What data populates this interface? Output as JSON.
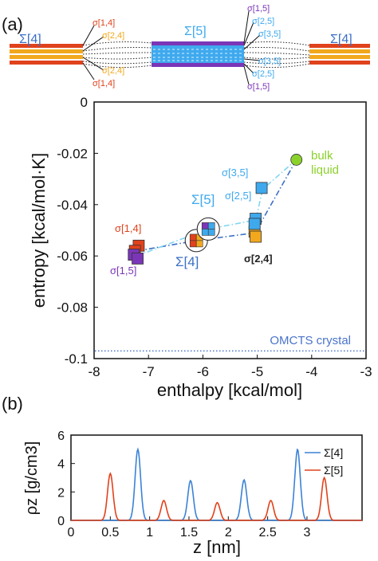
{
  "figure": {
    "panel_a_label": "(a)",
    "panel_b_label": "(b)",
    "schematic": {
      "sigma4_left": "Σ[4]",
      "sigma5": "Σ[5]",
      "sigma4_right": "Σ[4]",
      "left_labels": [
        "σ[1,4]",
        "σ[2,4]",
        "σ[2,4]",
        "σ[1,4]"
      ],
      "right_labels": [
        "σ[1,5]",
        "σ[2,5]",
        "σ[3,5]",
        "σ[3,5]",
        "σ[2,5]",
        "σ[1,5]"
      ],
      "colors": {
        "red": "#e0421c",
        "orange": "#f2a81d",
        "blue": "#3fa9ee",
        "purple": "#7b36b8"
      }
    }
  },
  "chart_data": [
    {
      "type": "scatter",
      "panel": "(a)",
      "xlabel": "enthalpy [kcal/mol]",
      "ylabel": "entropy [kcal/mol·K]",
      "xlim": [
        -8,
        -3
      ],
      "ylim": [
        -0.1,
        0
      ],
      "xticks": [
        "-8",
        "-7",
        "-6",
        "-5",
        "-4",
        "-3"
      ],
      "yticks": [
        "0",
        "-0.02",
        "-0.04",
        "-0.06",
        "-0.08",
        "-0.1"
      ],
      "reference_line": {
        "label": "OMCTS crystal",
        "y": -0.097,
        "color": "#4a74c9"
      },
      "bulk_liquid": {
        "label": "bulk liquid",
        "x": -4.28,
        "y": -0.0225,
        "color": "#8bd12b"
      },
      "points": [
        {
          "label": "σ[1,4]",
          "x": -7.18,
          "y": -0.056,
          "color": "#e0421c"
        },
        {
          "label": "σ[1,4]",
          "x": -7.25,
          "y": -0.058,
          "color": "#e0421c"
        },
        {
          "label": "σ[1,5]",
          "x": -7.27,
          "y": -0.0595,
          "color": "#7b36b8"
        },
        {
          "label": "σ[1,5]",
          "x": -7.2,
          "y": -0.061,
          "color": "#7b36b8"
        },
        {
          "label": "σ[2,4]",
          "x": -5.05,
          "y": -0.0505,
          "color": "#f2a81d"
        },
        {
          "label": "σ[2,4]",
          "x": -5.03,
          "y": -0.0525,
          "color": "#f2a81d"
        },
        {
          "label": "σ[2,5]",
          "x": -5.03,
          "y": -0.0455,
          "color": "#3fa9ee"
        },
        {
          "label": "σ[2,5]",
          "x": -5.05,
          "y": -0.0475,
          "color": "#3fa9ee"
        },
        {
          "label": "σ[3,5]",
          "x": -4.92,
          "y": -0.0335,
          "color": "#3fa9ee"
        }
      ],
      "point_labels": [
        {
          "text": "σ[1,4]",
          "color": "#e0421c"
        },
        {
          "text": "σ[1,5]",
          "color": "#7b36b8"
        },
        {
          "text": "σ[2,4]",
          "color": "#222222"
        },
        {
          "text": "σ[2,5]",
          "color": "#3fa9ee"
        },
        {
          "text": "σ[3,5]",
          "color": "#3fa9ee"
        }
      ],
      "averages": [
        {
          "label": "Σ[4]",
          "x": -6.12,
          "y": -0.054,
          "color": "#3b6fc6",
          "squares": [
            "#e0421c",
            "#f2a81d",
            "#e0421c",
            "#f2a81d"
          ]
        },
        {
          "label": "Σ[5]",
          "x": -5.9,
          "y": -0.0495,
          "color": "#3fa9ee",
          "squares": [
            "#7b36b8",
            "#3fa9ee",
            "#3fa9ee",
            "#3fa9ee"
          ]
        }
      ],
      "paths": [
        {
          "name": "Σ[4]",
          "style": "dash-dot",
          "color": "#3b6fc6",
          "points": [
            [
              -7.2,
              -0.058
            ],
            [
              -6.12,
              -0.054
            ],
            [
              -5.04,
              -0.051
            ],
            [
              -4.28,
              -0.0225
            ]
          ]
        },
        {
          "name": "Σ[5]",
          "style": "dash-dot",
          "color": "#7fd6f2",
          "points": [
            [
              -7.22,
              -0.06
            ],
            [
              -5.9,
              -0.0495
            ],
            [
              -5.03,
              -0.046
            ],
            [
              -4.9,
              -0.034
            ],
            [
              -4.28,
              -0.0225
            ]
          ]
        }
      ]
    },
    {
      "type": "line",
      "panel": "(b)",
      "xlabel": "z [nm]",
      "ylabel": "ρz [g/cm3]",
      "xlim": [
        0,
        3.7
      ],
      "ylim": [
        0,
        6
      ],
      "xticks": [
        "0",
        "0.5",
        "1",
        "1.5",
        "2",
        "2.5",
        "3"
      ],
      "yticks": [
        "0",
        "2",
        "4",
        "6"
      ],
      "legend": "top-right",
      "series": [
        {
          "name": "Σ[4]",
          "color": "#3b82d6",
          "peaks": [
            {
              "x": 0.85,
              "y": 5.0
            },
            {
              "x": 1.52,
              "y": 2.8
            },
            {
              "x": 2.2,
              "y": 2.85
            },
            {
              "x": 2.88,
              "y": 5.0
            }
          ]
        },
        {
          "name": "Σ[5]",
          "color": "#e0421c",
          "peaks": [
            {
              "x": 0.5,
              "y": 3.3
            },
            {
              "x": 1.18,
              "y": 1.4
            },
            {
              "x": 1.86,
              "y": 1.25
            },
            {
              "x": 2.54,
              "y": 1.4
            },
            {
              "x": 3.22,
              "y": 3.0
            }
          ]
        }
      ]
    }
  ]
}
